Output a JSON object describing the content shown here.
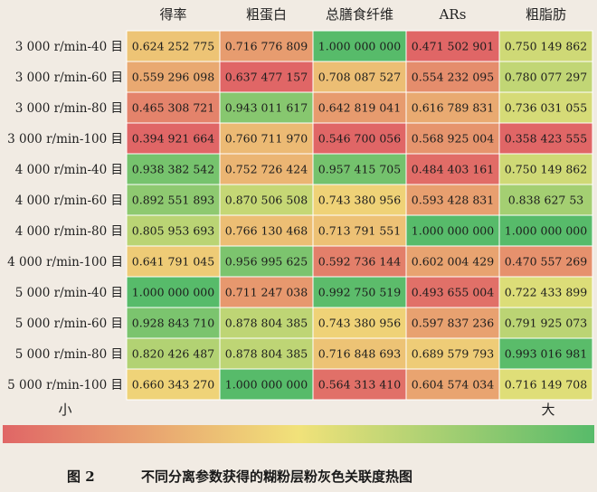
{
  "chart_data": {
    "type": "heatmap",
    "columns": [
      "得率",
      "粗蛋白",
      "总膳食纤维",
      "ARs",
      "粗脂肪"
    ],
    "rows": [
      "3 000 r/min-40 目",
      "3 000 r/min-60 目",
      "3 000 r/min-80 目",
      "3 000 r/min-100 目",
      "4 000 r/min-40 目",
      "4 000 r/min-60 目",
      "4 000 r/min-80 目",
      "4 000 r/min-100 目",
      "5 000 r/min-40 目",
      "5 000 r/min-60 目",
      "5 000 r/min-80 目",
      "5 000 r/min-100 目"
    ],
    "values": [
      [
        "0.624 252 775",
        "0.716 776 809",
        "1.000 000 000",
        "0.471 502 901",
        "0.750 149 862"
      ],
      [
        "0.559 296 098",
        "0.637 477 157",
        "0.708 087 527",
        "0.554 232 095",
        "0.780 077 297"
      ],
      [
        "0.465 308 721",
        "0.943 011 617",
        "0.642 819 041",
        "0.616 789 831",
        "0.736 031 055"
      ],
      [
        "0.394 921 664",
        "0.760 711 970",
        "0.546 700 056",
        "0.568 925 004",
        "0.358 423 555"
      ],
      [
        "0.938 382 542",
        "0.752 726 424",
        "0.957 415 705",
        "0.484 403 161",
        "0.750 149 862"
      ],
      [
        "0.892 551 893",
        "0.870 506 508",
        "0.743 380 956",
        "0.593 428 831",
        "0.838 627 53"
      ],
      [
        "0.805 953 693",
        "0.766 130 468",
        "0.713 791 551",
        "1.000 000 000",
        "1.000 000 000"
      ],
      [
        "0.641 791 045",
        "0.956 995 625",
        "0.592 736 144",
        "0.602 004 429",
        "0.470 557 269"
      ],
      [
        "1.000 000 000",
        "0.711 247 038",
        "0.992 750 519",
        "0.493 655 004",
        "0.722 433 899"
      ],
      [
        "0.928 843 710",
        "0.878 804 385",
        "0.743 380 956",
        "0.597 837 236",
        "0.791 925 073"
      ],
      [
        "0.820 426 487",
        "0.878 804 385",
        "0.716 848 693",
        "0.689 579 793",
        "0.993 016 981"
      ],
      [
        "0.660 343 270",
        "1.000 000 000",
        "0.564 313 410",
        "0.604 574 034",
        "0.716 149 708"
      ]
    ],
    "legend": {
      "low_label": "小",
      "high_label": "大"
    },
    "colorscale": {
      "low": "#e06666",
      "mid": "#f1e27a",
      "high": "#57bb6a"
    }
  },
  "caption": {
    "figure_number": "图 2",
    "text": "不同分离参数获得的糊粉层粉灰色关联度热图"
  }
}
